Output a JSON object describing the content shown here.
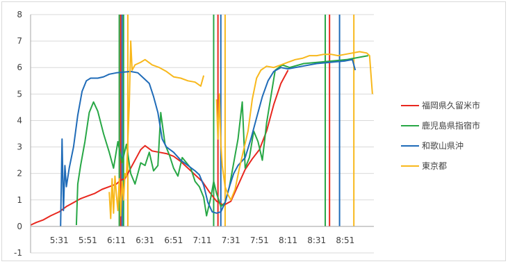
{
  "chart_data": {
    "type": "line",
    "title": "",
    "xlabel": "",
    "ylabel": "",
    "ylim": [
      -1,
      8
    ],
    "y_ticks": [
      "-1",
      "0",
      "1",
      "2",
      "3",
      "4",
      "5",
      "6",
      "7",
      "8"
    ],
    "xlim": [
      "5:11",
      "9:11"
    ],
    "x_ticks": [
      "5:31",
      "5:51",
      "6:11",
      "6:31",
      "6:51",
      "7:11",
      "7:31",
      "7:51",
      "8:11",
      "8:31",
      "8:51"
    ],
    "grid": "horizontal",
    "legend_position": "right",
    "series": [
      {
        "name": "福岡県久留米市",
        "color": "#e8271e",
        "values": [
          [
            "5:11",
            0.05
          ],
          [
            "5:15",
            0.15
          ],
          [
            "5:20",
            0.25
          ],
          [
            "5:25",
            0.4
          ],
          [
            "5:31",
            0.55
          ],
          [
            "5:36",
            0.75
          ],
          [
            "5:41",
            0.9
          ],
          [
            "5:46",
            1.05
          ],
          [
            "5:51",
            1.15
          ],
          [
            "5:56",
            1.25
          ],
          [
            "6:01",
            1.4
          ],
          [
            "6:06",
            1.5
          ],
          [
            "6:11",
            1.6
          ],
          [
            "6:14",
            1.75
          ],
          [
            "6:17",
            1.8
          ],
          [
            "6:21",
            2.2
          ],
          [
            "6:25",
            2.6
          ],
          [
            "6:28",
            2.9
          ],
          [
            "6:31",
            3.05
          ],
          [
            "6:36",
            2.85
          ],
          [
            "6:41",
            2.8
          ],
          [
            "6:46",
            2.75
          ],
          [
            "6:51",
            2.65
          ],
          [
            "6:56",
            2.45
          ],
          [
            "7:01",
            2.2
          ],
          [
            "7:06",
            1.95
          ],
          [
            "7:11",
            1.7
          ],
          [
            "7:16",
            1.3
          ],
          [
            "7:21",
            0.95
          ],
          [
            "7:26",
            0.8
          ],
          [
            "7:31",
            0.95
          ],
          [
            "7:36",
            1.55
          ],
          [
            "7:41",
            2.15
          ],
          [
            "7:46",
            2.55
          ],
          [
            "7:51",
            2.9
          ],
          [
            "7:56",
            3.6
          ],
          [
            "8:01",
            4.6
          ],
          [
            "8:06",
            5.4
          ],
          [
            "8:11",
            5.9
          ]
        ]
      },
      {
        "name": "鹿児島県指宿市",
        "color": "#27a745",
        "values": [
          [
            "5:43",
            0.05
          ],
          [
            "5:44",
            1.6
          ],
          [
            "5:46",
            2.3
          ],
          [
            "5:49",
            3.2
          ],
          [
            "5:52",
            4.3
          ],
          [
            "5:55",
            4.7
          ],
          [
            "5:58",
            4.35
          ],
          [
            "6:02",
            3.5
          ],
          [
            "6:06",
            2.8
          ],
          [
            "6:09",
            2.2
          ],
          [
            "6:12",
            3.2
          ],
          [
            "6:15",
            2.4
          ],
          [
            "6:18",
            3.1
          ],
          [
            "6:21",
            2.0
          ],
          [
            "6:24",
            1.6
          ],
          [
            "6:28",
            2.4
          ],
          [
            "6:31",
            2.3
          ],
          [
            "6:34",
            2.8
          ],
          [
            "6:37",
            2.1
          ],
          [
            "6:40",
            2.3
          ],
          [
            "6:42",
            4.3
          ],
          [
            "6:45",
            3.1
          ],
          [
            "6:48",
            2.7
          ],
          [
            "6:51",
            2.2
          ],
          [
            "6:54",
            1.9
          ],
          [
            "6:57",
            2.6
          ],
          [
            "7:00",
            2.4
          ],
          [
            "7:03",
            2.2
          ],
          [
            "7:06",
            1.7
          ],
          [
            "7:09",
            1.5
          ],
          [
            "7:12",
            1.1
          ],
          [
            "7:14",
            0.4
          ],
          [
            "7:17",
            1.1
          ],
          [
            "7:19",
            1.7
          ],
          [
            "7:21",
            1.25
          ],
          [
            "7:24",
            0.75
          ],
          [
            "7:27",
            0.9
          ],
          [
            "7:30",
            1.5
          ],
          [
            "7:33",
            2.4
          ],
          [
            "7:36",
            3.3
          ],
          [
            "7:39",
            4.7
          ],
          [
            "7:41",
            2.2
          ],
          [
            "7:44",
            2.6
          ],
          [
            "7:47",
            3.6
          ],
          [
            "7:50",
            3.2
          ],
          [
            "7:53",
            2.5
          ],
          [
            "7:56",
            3.9
          ],
          [
            "7:59",
            4.9
          ],
          [
            "8:02",
            5.9
          ],
          [
            "8:07",
            6.1
          ],
          [
            "8:12",
            6.0
          ],
          [
            "8:22",
            6.15
          ],
          [
            "8:32",
            6.2
          ],
          [
            "8:42",
            6.25
          ],
          [
            "8:52",
            6.3
          ],
          [
            "9:02",
            6.4
          ],
          [
            "9:07",
            6.45
          ]
        ]
      },
      {
        "name": "和歌山県沖",
        "color": "#1f6bb8",
        "values": [
          [
            "5:32",
            0.0
          ],
          [
            "5:33",
            3.3
          ],
          [
            "5:34",
            0.6
          ],
          [
            "5:35",
            2.3
          ],
          [
            "5:36",
            1.5
          ],
          [
            "5:38",
            2.2
          ],
          [
            "5:41",
            3.0
          ],
          [
            "5:44",
            4.2
          ],
          [
            "5:47",
            5.1
          ],
          [
            "5:50",
            5.5
          ],
          [
            "5:53",
            5.6
          ],
          [
            "5:58",
            5.6
          ],
          [
            "6:02",
            5.65
          ],
          [
            "6:06",
            5.75
          ],
          [
            "6:11",
            5.8
          ],
          [
            "6:21",
            5.85
          ],
          [
            "6:26",
            5.8
          ],
          [
            "6:31",
            5.55
          ],
          [
            "6:34",
            5.4
          ],
          [
            "6:37",
            4.9
          ],
          [
            "6:40",
            4.3
          ],
          [
            "6:43",
            3.3
          ],
          [
            "6:46",
            3.0
          ],
          [
            "6:51",
            2.8
          ],
          [
            "6:56",
            2.5
          ],
          [
            "7:01",
            2.3
          ],
          [
            "7:06",
            2.1
          ],
          [
            "7:09",
            1.95
          ],
          [
            "7:12",
            1.55
          ],
          [
            "7:15",
            0.9
          ],
          [
            "7:18",
            0.55
          ],
          [
            "7:21",
            0.5
          ],
          [
            "7:24",
            0.55
          ],
          [
            "7:27",
            0.9
          ],
          [
            "7:30",
            1.5
          ],
          [
            "7:33",
            2.0
          ],
          [
            "7:36",
            2.3
          ],
          [
            "7:41",
            2.6
          ],
          [
            "7:45",
            3.3
          ],
          [
            "7:49",
            4.1
          ],
          [
            "7:53",
            4.9
          ],
          [
            "7:57",
            5.5
          ],
          [
            "8:01",
            5.85
          ],
          [
            "8:06",
            6.0
          ],
          [
            "8:11",
            5.95
          ],
          [
            "8:21",
            6.05
          ],
          [
            "8:31",
            6.15
          ],
          [
            "8:41",
            6.2
          ],
          [
            "8:51",
            6.25
          ],
          [
            "8:56",
            6.3
          ],
          [
            "8:58",
            5.9
          ]
        ]
      },
      {
        "name": "東京都",
        "color": "#f8b81c",
        "values": [
          [
            "6:06",
            1.3
          ],
          [
            "6:07",
            0.3
          ],
          [
            "6:08",
            1.8
          ],
          [
            "6:09",
            0.5
          ],
          [
            "6:10",
            1.9
          ],
          [
            "6:11",
            1.2
          ],
          [
            "6:12",
            0.6
          ],
          [
            "6:13",
            1.8
          ],
          [
            "6:14",
            0.4
          ],
          [
            "6:15",
            1.7
          ],
          [
            "6:16",
            1.0
          ],
          [
            "6:17",
            2.0
          ],
          [
            "6:18",
            1.9
          ],
          [
            "6:20",
            4.6
          ],
          [
            "6:21",
            7.0
          ],
          [
            "6:22",
            5.9
          ],
          [
            "6:24",
            6.1
          ],
          [
            "6:28",
            6.2
          ],
          [
            "6:31",
            6.3
          ],
          [
            "6:36",
            6.1
          ],
          [
            "6:41",
            6.0
          ],
          [
            "6:46",
            5.85
          ],
          [
            "6:51",
            5.65
          ],
          [
            "6:56",
            5.6
          ],
          [
            "7:01",
            5.5
          ],
          [
            "7:06",
            5.45
          ],
          [
            "7:10",
            5.3
          ],
          [
            "7:11",
            5.5
          ],
          [
            "7:12",
            5.7
          ]
        ]
      },
      {
        "name": "東京都",
        "color": "#f8b81c",
        "values": [
          [
            "7:21",
            4.8
          ],
          [
            "7:22",
            3.3
          ],
          [
            "7:23",
            5.0
          ],
          [
            "7:24",
            3.1
          ],
          [
            "7:25",
            2.3
          ],
          [
            "7:27",
            1.5
          ],
          [
            "7:29",
            1.2
          ],
          [
            "7:31",
            1.0
          ],
          [
            "7:34",
            1.4
          ],
          [
            "7:37",
            2.2
          ],
          [
            "7:40",
            2.9
          ],
          [
            "7:43",
            3.6
          ],
          [
            "7:46",
            4.8
          ],
          [
            "7:49",
            5.6
          ],
          [
            "7:52",
            5.9
          ],
          [
            "7:56",
            6.05
          ],
          [
            "8:01",
            6.0
          ],
          [
            "8:06",
            6.1
          ],
          [
            "8:11",
            6.2
          ],
          [
            "8:16",
            6.3
          ],
          [
            "8:21",
            6.35
          ],
          [
            "8:26",
            6.45
          ],
          [
            "8:31",
            6.45
          ],
          [
            "8:36",
            6.5
          ],
          [
            "8:41",
            6.5
          ],
          [
            "8:46",
            6.45
          ],
          [
            "8:51",
            6.5
          ],
          [
            "8:56",
            6.55
          ],
          [
            "9:01",
            6.6
          ],
          [
            "9:06",
            6.55
          ],
          [
            "9:08",
            6.45
          ],
          [
            "9:10",
            5.0
          ]
        ]
      }
    ],
    "vertical_lines": [
      {
        "x": "6:13",
        "color": "#27a745"
      },
      {
        "x": "6:14",
        "color": "#e8271e"
      },
      {
        "x": "6:15",
        "color": "#1f6bb8"
      },
      {
        "x": "6:16",
        "color": "#27a745"
      },
      {
        "x": "6:19",
        "color": "#f8b81c"
      },
      {
        "x": "7:19",
        "color": "#27a745"
      },
      {
        "x": "7:22",
        "color": "#e8271e"
      },
      {
        "x": "7:24",
        "color": "#1f6bb8"
      },
      {
        "x": "7:27",
        "color": "#f8b81c"
      },
      {
        "x": "8:37",
        "color": "#27a745"
      },
      {
        "x": "8:40",
        "color": "#e8271e"
      },
      {
        "x": "8:47",
        "color": "#1f6bb8"
      },
      {
        "x": "8:57",
        "color": "#f8b81c"
      }
    ]
  },
  "legend": [
    {
      "label": "福岡県久留米市",
      "color": "#e8271e"
    },
    {
      "label": "鹿児島県指宿市",
      "color": "#27a745"
    },
    {
      "label": "和歌山県沖",
      "color": "#1f6bb8"
    },
    {
      "label": "東京都",
      "color": "#f8b81c"
    }
  ]
}
